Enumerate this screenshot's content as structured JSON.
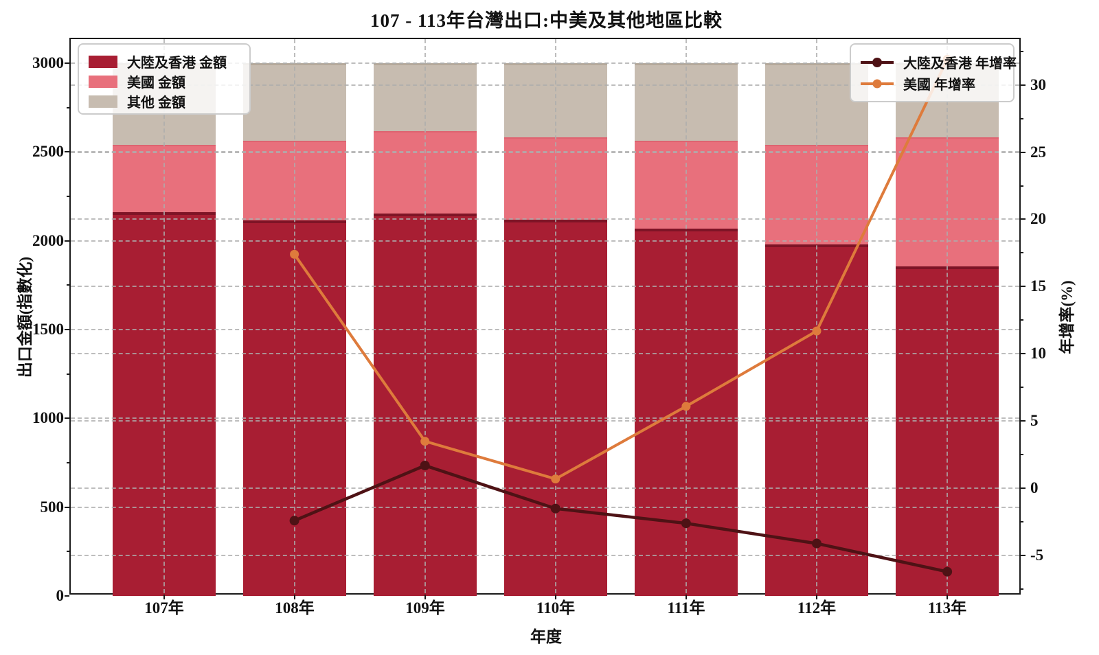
{
  "title": "107 - 113年台灣出口:中美及其他地區比較",
  "chart_data": {
    "type": "bar",
    "subtype": "stacked_bars_with_growth_lines",
    "title": "107 - 113年台灣出口:中美及其他地區比較",
    "xlabel": "年度",
    "ylabel_left": "出口金額(指數化)",
    "ylabel_right": "年增率(%)",
    "categories": [
      "107年",
      "108年",
      "109年",
      "110年",
      "111年",
      "112年",
      "113年"
    ],
    "bar_series": [
      {
        "name": "大陸及香港 金額",
        "color": "#A81E33",
        "edge_color": "#7E1426",
        "values": [
          2160,
          2114,
          2152,
          2119,
          2068,
          1981,
          1856
        ]
      },
      {
        "name": "美國 金額",
        "color": "#E8707C",
        "edge_color": "#DE6370",
        "values": [
          380,
          448,
          465,
          462,
          494,
          560,
          726
        ]
      },
      {
        "name": "其他 金額",
        "color": "#C7BCB0",
        "edge_color": "#B5A99B",
        "values": [
          460,
          438,
          383,
          419,
          438,
          459,
          418
        ]
      }
    ],
    "line_series": [
      {
        "name": "大陸及香港 年增率",
        "color": "#4E1215",
        "line_width": 4.5,
        "marker_size": 14,
        "values": [
          null,
          -2.4,
          1.7,
          -1.5,
          -2.6,
          -4.1,
          -6.2
        ]
      },
      {
        "name": "美國 年增率",
        "color": "#DE7B3C",
        "line_width": 4,
        "marker_size": 13,
        "values": [
          null,
          17.4,
          3.5,
          0.7,
          6.1,
          11.7,
          31.9
        ]
      }
    ],
    "yticks_left": [
      0,
      500,
      1000,
      1500,
      2000,
      2500,
      3000
    ],
    "yticks_right": [
      -5,
      0,
      5,
      10,
      15,
      20,
      25,
      30
    ],
    "ylim_left": [
      0,
      3135
    ],
    "ylim_right": [
      -8,
      33.4
    ],
    "grid": "dashed horizontal gridlines for both axes and dashed vertical gridlines at category centers, drawn over bars",
    "legend_left_position": "upper left",
    "legend_right_position": "upper right"
  }
}
